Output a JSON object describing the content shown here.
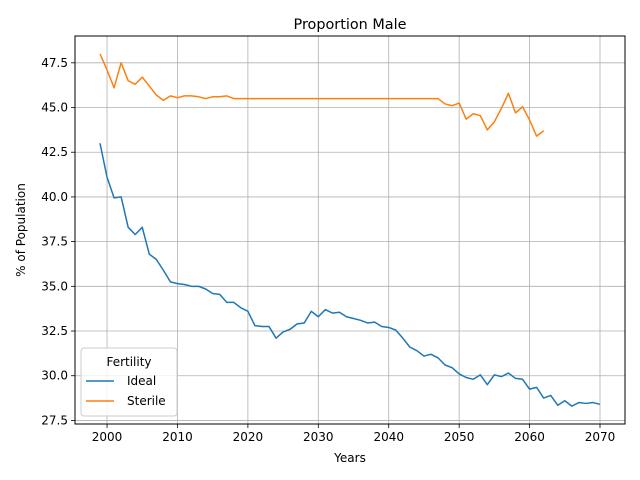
{
  "chart_data": {
    "type": "line",
    "title": "Proportion Male",
    "xlabel": "Years",
    "ylabel": "% of Population",
    "xlim": [
      1995.45,
      2073.55
    ],
    "ylim": [
      27.3,
      49.0
    ],
    "xticks": [
      2000,
      2010,
      2020,
      2030,
      2040,
      2050,
      2060,
      2070
    ],
    "yticks": [
      27.5,
      30.0,
      32.5,
      35.0,
      37.5,
      40.0,
      42.5,
      45.0,
      47.5
    ],
    "grid": true,
    "legend": {
      "title": "Fertility",
      "position": "lower-left"
    },
    "series": [
      {
        "name": "Ideal",
        "color": "#1f77b4",
        "x": [
          1999,
          2000,
          2001,
          2002,
          2003,
          2004,
          2005,
          2006,
          2007,
          2008,
          2009,
          2010,
          2011,
          2012,
          2013,
          2014,
          2015,
          2016,
          2017,
          2018,
          2019,
          2020,
          2021,
          2022,
          2023,
          2024,
          2025,
          2026,
          2027,
          2028,
          2029,
          2030,
          2031,
          2032,
          2033,
          2034,
          2035,
          2036,
          2037,
          2038,
          2039,
          2040,
          2041,
          2042,
          2043,
          2044,
          2045,
          2046,
          2047,
          2048,
          2049,
          2050,
          2051,
          2052,
          2053,
          2054,
          2055,
          2056,
          2057,
          2058,
          2059,
          2060,
          2061,
          2062,
          2063,
          2064,
          2065,
          2066,
          2067,
          2068,
          2069,
          2070
        ],
        "y": [
          43.0,
          41.1,
          39.95,
          40.0,
          38.3,
          37.9,
          38.3,
          36.8,
          36.5,
          35.9,
          35.25,
          35.15,
          35.1,
          35.0,
          35.0,
          34.85,
          34.6,
          34.55,
          34.1,
          34.1,
          33.8,
          33.6,
          32.8,
          32.75,
          32.75,
          32.1,
          32.45,
          32.6,
          32.9,
          32.95,
          33.6,
          33.3,
          33.7,
          33.5,
          33.55,
          33.3,
          33.2,
          33.1,
          32.95,
          33.0,
          32.75,
          32.7,
          32.55,
          32.1,
          31.6,
          31.4,
          31.1,
          31.2,
          31.0,
          30.6,
          30.45,
          30.1,
          29.9,
          29.8,
          30.05,
          29.5,
          30.05,
          29.95,
          30.15,
          29.85,
          29.8,
          29.25,
          29.35,
          28.75,
          28.9,
          28.35,
          28.6,
          28.3,
          28.5,
          28.45,
          28.5,
          28.4
        ]
      },
      {
        "name": "Sterile",
        "color": "#ff7f0e",
        "x": [
          1999,
          2000,
          2001,
          2002,
          2003,
          2004,
          2005,
          2006,
          2007,
          2008,
          2009,
          2010,
          2011,
          2012,
          2013,
          2014,
          2015,
          2016,
          2017,
          2018,
          2019,
          2020,
          2021,
          2022,
          2023,
          2024,
          2025,
          2026,
          2027,
          2028,
          2029,
          2030,
          2031,
          2032,
          2033,
          2034,
          2035,
          2036,
          2037,
          2038,
          2039,
          2040,
          2041,
          2042,
          2043,
          2044,
          2045,
          2046,
          2047,
          2048,
          2049,
          2050,
          2051,
          2052,
          2053,
          2054,
          2055,
          2056,
          2057,
          2058,
          2059,
          2060,
          2061,
          2062
        ],
        "y": [
          48.0,
          47.1,
          46.1,
          47.5,
          46.5,
          46.3,
          46.7,
          46.2,
          45.7,
          45.4,
          45.65,
          45.55,
          45.65,
          45.65,
          45.6,
          45.5,
          45.6,
          45.6,
          45.65,
          45.5,
          45.5,
          45.5,
          45.5,
          45.5,
          45.5,
          45.5,
          45.5,
          45.5,
          45.5,
          45.5,
          45.5,
          45.5,
          45.5,
          45.5,
          45.5,
          45.5,
          45.5,
          45.5,
          45.5,
          45.5,
          45.5,
          45.5,
          45.5,
          45.5,
          45.5,
          45.5,
          45.5,
          45.5,
          45.5,
          45.2,
          45.1,
          45.25,
          44.35,
          44.65,
          44.55,
          43.75,
          44.2,
          44.95,
          45.8,
          44.7,
          45.05,
          44.3,
          43.4,
          43.7
        ]
      }
    ]
  }
}
